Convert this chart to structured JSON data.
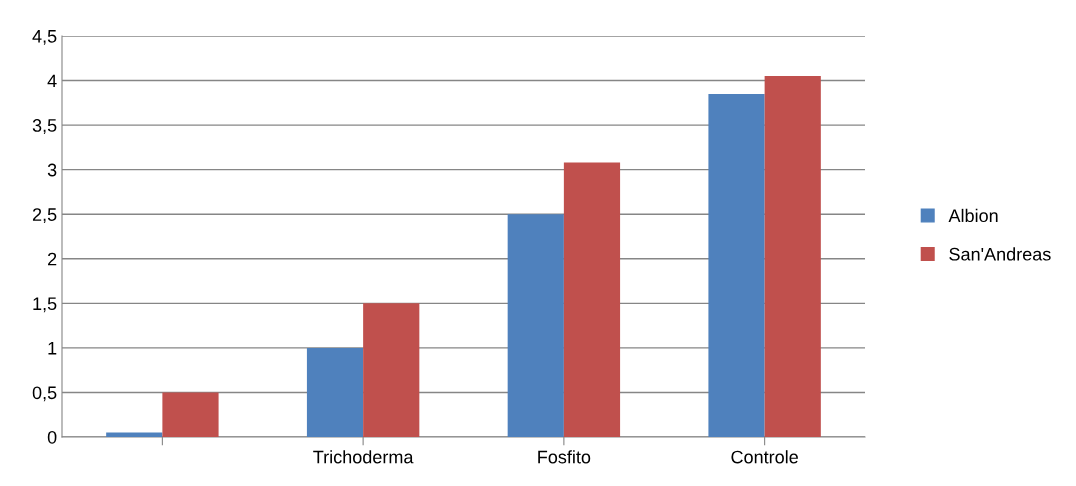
{
  "chart_data": {
    "type": "bar",
    "categories": [
      null,
      "Trichoderma",
      "Fosfito",
      "Controle"
    ],
    "series": [
      {
        "name": "Albion",
        "color": "#4f81bd",
        "values": [
          0.05,
          1.0,
          2.5,
          3.85
        ]
      },
      {
        "name": "San'Andreas",
        "color": "#c0504d",
        "values": [
          0.5,
          1.5,
          3.08,
          4.05
        ]
      }
    ],
    "ylim": [
      0,
      4.5
    ],
    "yticks": [
      {
        "value": 0,
        "label": "0"
      },
      {
        "value": 0.5,
        "label": "0,5"
      },
      {
        "value": 1,
        "label": "1"
      },
      {
        "value": 1.5,
        "label": "1,5"
      },
      {
        "value": 2,
        "label": "2"
      },
      {
        "value": 2.5,
        "label": "2,5"
      },
      {
        "value": 3,
        "label": "3"
      },
      {
        "value": 3.5,
        "label": "3,5"
      },
      {
        "value": 4,
        "label": "4"
      },
      {
        "value": 4.5,
        "label": "4,5"
      }
    ],
    "grid": "y",
    "legend": "right"
  }
}
